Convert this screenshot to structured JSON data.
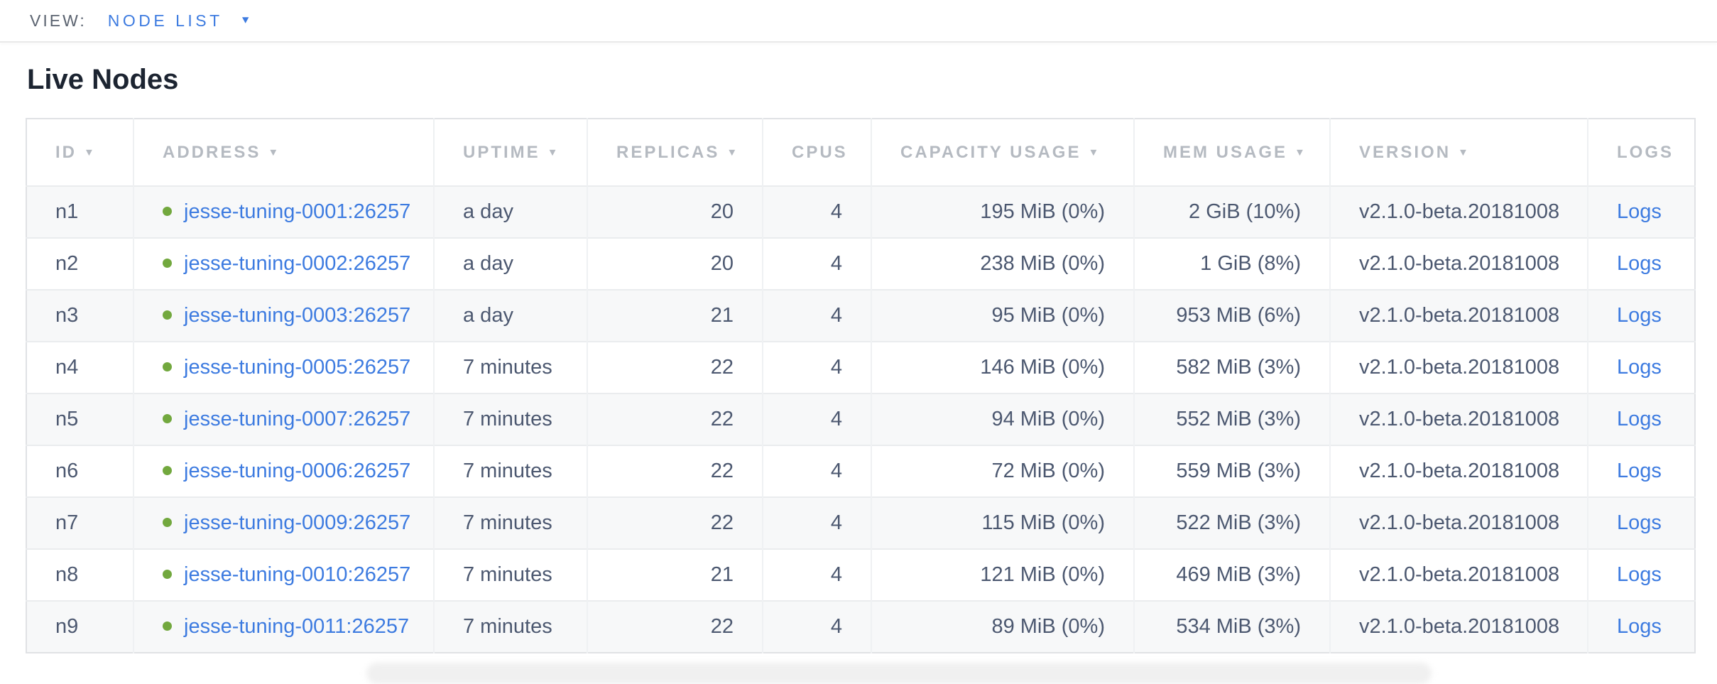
{
  "view_bar": {
    "label": "VIEW:",
    "selected_view": "NODE LIST"
  },
  "section": {
    "title": "Live Nodes"
  },
  "icons": {
    "sort_desc": "▼",
    "caret_down": "▼"
  },
  "colors": {
    "accent_blue": "#3d7be0",
    "healthy_green": "#72a83e",
    "header_gray": "#b5bac1",
    "cell_slate": "#4c5870",
    "alt_row_bg": "#f7f8f9"
  },
  "table": {
    "columns": [
      {
        "label": "ID",
        "sortable": true
      },
      {
        "label": "ADDRESS",
        "sortable": true
      },
      {
        "label": "UPTIME",
        "sortable": true
      },
      {
        "label": "REPLICAS",
        "sortable": true
      },
      {
        "label": "CPUS",
        "sortable": false
      },
      {
        "label": "CAPACITY USAGE",
        "sortable": true
      },
      {
        "label": "MEM USAGE",
        "sortable": true
      },
      {
        "label": "VERSION",
        "sortable": true
      },
      {
        "label": "LOGS",
        "sortable": false
      }
    ],
    "rows": [
      {
        "id": "n1",
        "address": "jesse-tuning-0001:26257",
        "uptime": "a day",
        "replicas": "20",
        "cpus": "4",
        "capacity_usage": "195 MiB (0%)",
        "mem_usage": "2 GiB (10%)",
        "version": "v2.1.0-beta.20181008",
        "logs": "Logs"
      },
      {
        "id": "n2",
        "address": "jesse-tuning-0002:26257",
        "uptime": "a day",
        "replicas": "20",
        "cpus": "4",
        "capacity_usage": "238 MiB (0%)",
        "mem_usage": "1 GiB (8%)",
        "version": "v2.1.0-beta.20181008",
        "logs": "Logs"
      },
      {
        "id": "n3",
        "address": "jesse-tuning-0003:26257",
        "uptime": "a day",
        "replicas": "21",
        "cpus": "4",
        "capacity_usage": "95 MiB (0%)",
        "mem_usage": "953 MiB (6%)",
        "version": "v2.1.0-beta.20181008",
        "logs": "Logs"
      },
      {
        "id": "n4",
        "address": "jesse-tuning-0005:26257",
        "uptime": "7 minutes",
        "replicas": "22",
        "cpus": "4",
        "capacity_usage": "146 MiB (0%)",
        "mem_usage": "582 MiB (3%)",
        "version": "v2.1.0-beta.20181008",
        "logs": "Logs"
      },
      {
        "id": "n5",
        "address": "jesse-tuning-0007:26257",
        "uptime": "7 minutes",
        "replicas": "22",
        "cpus": "4",
        "capacity_usage": "94 MiB (0%)",
        "mem_usage": "552 MiB (3%)",
        "version": "v2.1.0-beta.20181008",
        "logs": "Logs"
      },
      {
        "id": "n6",
        "address": "jesse-tuning-0006:26257",
        "uptime": "7 minutes",
        "replicas": "22",
        "cpus": "4",
        "capacity_usage": "72 MiB (0%)",
        "mem_usage": "559 MiB (3%)",
        "version": "v2.1.0-beta.20181008",
        "logs": "Logs"
      },
      {
        "id": "n7",
        "address": "jesse-tuning-0009:26257",
        "uptime": "7 minutes",
        "replicas": "22",
        "cpus": "4",
        "capacity_usage": "115 MiB (0%)",
        "mem_usage": "522 MiB (3%)",
        "version": "v2.1.0-beta.20181008",
        "logs": "Logs"
      },
      {
        "id": "n8",
        "address": "jesse-tuning-0010:26257",
        "uptime": "7 minutes",
        "replicas": "21",
        "cpus": "4",
        "capacity_usage": "121 MiB (0%)",
        "mem_usage": "469 MiB (3%)",
        "version": "v2.1.0-beta.20181008",
        "logs": "Logs"
      },
      {
        "id": "n9",
        "address": "jesse-tuning-0011:26257",
        "uptime": "7 minutes",
        "replicas": "22",
        "cpus": "4",
        "capacity_usage": "89 MiB (0%)",
        "mem_usage": "534 MiB (3%)",
        "version": "v2.1.0-beta.20181008",
        "logs": "Logs"
      }
    ]
  }
}
